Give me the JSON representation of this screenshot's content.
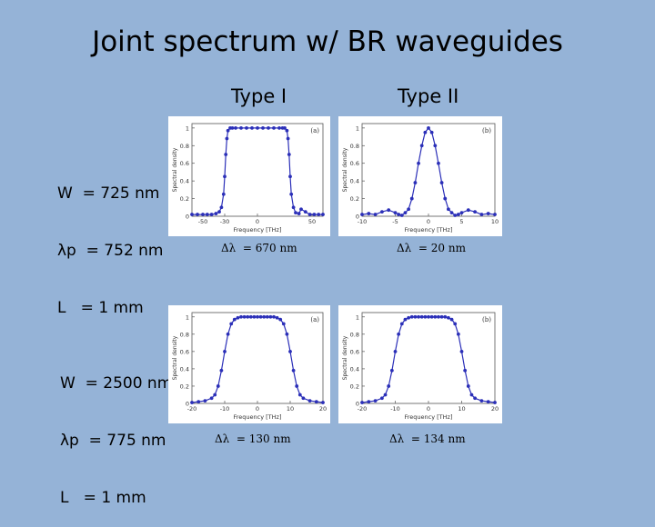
{
  "title": "Joint spectrum w/ BR waveguides",
  "columns": [
    "Type I",
    "Type II"
  ],
  "rows": [
    {
      "lines": [
        "W  = 725 nm",
        "λp  = 752 nm",
        "L   = 1 mm"
      ]
    },
    {
      "lines": [
        "W  = 2500 nm",
        "λp  = 775 nm",
        "L   = 1 mm"
      ]
    }
  ],
  "captions": [
    "Δλ  = 670 nm",
    "Δλ  = 20 nm",
    "Δλ  = 130 nm",
    "Δλ  = 134 nm"
  ],
  "colors": {
    "background": "#95b3d7",
    "series": "#2b2fb8"
  },
  "chart_data": [
    {
      "type": "scatter",
      "panel_label": "(a)",
      "xlabel": "Frequency [THz]",
      "ylabel": "Spectral density",
      "xlim": [
        -60,
        60
      ],
      "ylim": [
        0,
        1.05
      ],
      "xticks": [
        -50,
        -30,
        0,
        50
      ],
      "yticks": [
        0,
        0.2,
        0.4,
        0.6,
        0.8,
        1
      ],
      "series": [
        {
          "x": [
            -60,
            -55,
            -50,
            -46,
            -42,
            -38,
            -35,
            -33,
            -31,
            -30,
            -29,
            -28,
            -27,
            -25,
            -23,
            -20,
            -15,
            -10,
            -5,
            0,
            5,
            10,
            15,
            20,
            23,
            25,
            27,
            28,
            29,
            30,
            31,
            33,
            35,
            38,
            40,
            44,
            48,
            52,
            56,
            60
          ],
          "values": [
            0.02,
            0.02,
            0.02,
            0.02,
            0.02,
            0.03,
            0.05,
            0.1,
            0.25,
            0.45,
            0.7,
            0.88,
            0.97,
            1,
            1,
            1,
            1,
            1,
            1,
            1,
            1,
            1,
            1,
            1,
            1,
            1,
            0.97,
            0.88,
            0.7,
            0.45,
            0.25,
            0.1,
            0.04,
            0.03,
            0.08,
            0.05,
            0.02,
            0.02,
            0.02,
            0.02
          ]
        }
      ]
    },
    {
      "type": "scatter",
      "panel_label": "(b)",
      "xlabel": "Frequency [THz]",
      "ylabel": "Spectral density",
      "xlim": [
        -10,
        10
      ],
      "ylim": [
        0,
        1.05
      ],
      "xticks": [
        -10,
        -5,
        0,
        5,
        10
      ],
      "yticks": [
        0,
        0.2,
        0.4,
        0.6,
        0.8,
        1
      ],
      "series": [
        {
          "x": [
            -10,
            -9,
            -8,
            -7,
            -6,
            -5,
            -4.5,
            -4,
            -3.5,
            -3,
            -2.5,
            -2,
            -1.5,
            -1,
            -0.5,
            0,
            0.5,
            1,
            1.5,
            2,
            2.5,
            3,
            3.5,
            4,
            4.5,
            5,
            6,
            7,
            8,
            9,
            10
          ],
          "values": [
            0.02,
            0.03,
            0.02,
            0.05,
            0.07,
            0.04,
            0.02,
            0.01,
            0.04,
            0.08,
            0.2,
            0.38,
            0.6,
            0.8,
            0.95,
            1,
            0.95,
            0.8,
            0.6,
            0.38,
            0.2,
            0.08,
            0.04,
            0.01,
            0.02,
            0.04,
            0.07,
            0.05,
            0.02,
            0.03,
            0.02
          ]
        }
      ]
    },
    {
      "type": "scatter",
      "panel_label": "(a)",
      "xlabel": "Frequency [THz]",
      "ylabel": "Spectral density",
      "xlim": [
        -20,
        20
      ],
      "ylim": [
        0,
        1.05
      ],
      "xticks": [
        -20,
        -10,
        0,
        10,
        20
      ],
      "yticks": [
        0,
        0.2,
        0.4,
        0.6,
        0.8,
        1
      ],
      "series": [
        {
          "x": [
            -20,
            -18,
            -16,
            -14,
            -13,
            -12,
            -11,
            -10,
            -9,
            -8,
            -7,
            -6,
            -5,
            -4,
            -3,
            -2,
            -1,
            0,
            1,
            2,
            3,
            4,
            5,
            6,
            7,
            8,
            9,
            10,
            11,
            12,
            13,
            14,
            16,
            18,
            20
          ],
          "values": [
            0.01,
            0.02,
            0.03,
            0.06,
            0.1,
            0.2,
            0.38,
            0.6,
            0.8,
            0.92,
            0.97,
            0.99,
            1,
            1,
            1,
            1,
            1,
            1,
            1,
            1,
            1,
            1,
            1,
            0.99,
            0.97,
            0.92,
            0.8,
            0.6,
            0.38,
            0.2,
            0.1,
            0.06,
            0.03,
            0.02,
            0.01
          ]
        }
      ]
    },
    {
      "type": "scatter",
      "panel_label": "(b)",
      "xlabel": "Frequency [THz]",
      "ylabel": "Spectral density",
      "xlim": [
        -20,
        20
      ],
      "ylim": [
        0,
        1.05
      ],
      "xticks": [
        -20,
        -10,
        0,
        10,
        20
      ],
      "yticks": [
        0,
        0.2,
        0.4,
        0.6,
        0.8,
        1
      ],
      "series": [
        {
          "x": [
            -20,
            -18,
            -16,
            -14,
            -13,
            -12,
            -11,
            -10,
            -9,
            -8,
            -7,
            -6,
            -5,
            -4,
            -3,
            -2,
            -1,
            0,
            1,
            2,
            3,
            4,
            5,
            6,
            7,
            8,
            9,
            10,
            11,
            12,
            13,
            14,
            16,
            18,
            20
          ],
          "values": [
            0.01,
            0.02,
            0.03,
            0.06,
            0.1,
            0.2,
            0.38,
            0.6,
            0.8,
            0.92,
            0.97,
            0.99,
            1,
            1,
            1,
            1,
            1,
            1,
            1,
            1,
            1,
            1,
            1,
            0.99,
            0.97,
            0.92,
            0.8,
            0.6,
            0.38,
            0.2,
            0.1,
            0.06,
            0.03,
            0.02,
            0.01
          ]
        }
      ]
    }
  ]
}
